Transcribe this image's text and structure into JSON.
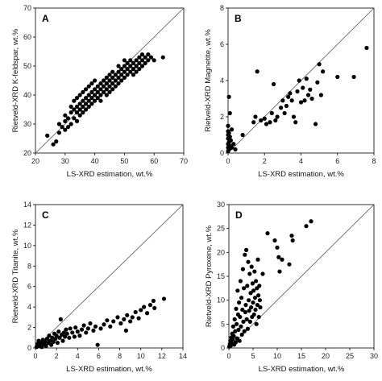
{
  "chart_data": [
    {
      "type": "scatter",
      "panel": "A",
      "xlabel": "LS-XRD estimation, wt.%",
      "ylabel": "Rietveld-XRD K-feldspar, wt.%",
      "xlim": [
        20,
        70
      ],
      "ylim": [
        20,
        70
      ],
      "xticks": [
        20,
        30,
        40,
        50,
        60,
        70
      ],
      "yticks": [
        20,
        30,
        40,
        50,
        60,
        70
      ],
      "reference_line": "1:1",
      "points": [
        [
          24,
          26
        ],
        [
          26,
          23
        ],
        [
          27,
          24
        ],
        [
          28,
          30
        ],
        [
          28,
          27
        ],
        [
          29,
          29
        ],
        [
          30,
          28
        ],
        [
          30,
          31
        ],
        [
          30,
          33
        ],
        [
          31,
          29
        ],
        [
          31,
          32
        ],
        [
          32,
          30
        ],
        [
          32,
          34
        ],
        [
          32,
          36
        ],
        [
          33,
          32
        ],
        [
          33,
          35
        ],
        [
          33,
          38
        ],
        [
          34,
          31
        ],
        [
          34,
          34
        ],
        [
          34,
          36
        ],
        [
          34,
          39
        ],
        [
          35,
          33
        ],
        [
          35,
          35
        ],
        [
          35,
          37
        ],
        [
          35,
          40
        ],
        [
          36,
          34
        ],
        [
          36,
          36
        ],
        [
          36,
          38
        ],
        [
          36,
          41
        ],
        [
          37,
          35
        ],
        [
          37,
          37
        ],
        [
          37,
          39
        ],
        [
          37,
          42
        ],
        [
          38,
          36
        ],
        [
          38,
          38
        ],
        [
          38,
          40
        ],
        [
          38,
          43
        ],
        [
          39,
          37
        ],
        [
          39,
          39
        ],
        [
          39,
          41
        ],
        [
          39,
          44
        ],
        [
          40,
          38
        ],
        [
          40,
          40
        ],
        [
          40,
          42
        ],
        [
          40,
          45
        ],
        [
          41,
          39
        ],
        [
          41,
          41
        ],
        [
          41,
          43
        ],
        [
          42,
          38
        ],
        [
          42,
          40
        ],
        [
          42,
          42
        ],
        [
          42,
          44
        ],
        [
          43,
          41
        ],
        [
          43,
          43
        ],
        [
          43,
          45
        ],
        [
          44,
          40
        ],
        [
          44,
          42
        ],
        [
          44,
          44
        ],
        [
          44,
          46
        ],
        [
          45,
          41
        ],
        [
          45,
          43
        ],
        [
          45,
          45
        ],
        [
          45,
          47
        ],
        [
          46,
          42
        ],
        [
          46,
          44
        ],
        [
          46,
          46
        ],
        [
          46,
          48
        ],
        [
          47,
          43
        ],
        [
          47,
          45
        ],
        [
          47,
          47
        ],
        [
          48,
          44
        ],
        [
          48,
          46
        ],
        [
          48,
          48
        ],
        [
          48,
          50
        ],
        [
          49,
          45
        ],
        [
          49,
          47
        ],
        [
          49,
          49
        ],
        [
          50,
          46
        ],
        [
          50,
          48
        ],
        [
          50,
          50
        ],
        [
          50,
          52
        ],
        [
          51,
          47
        ],
        [
          51,
          49
        ],
        [
          51,
          51
        ],
        [
          52,
          48
        ],
        [
          52,
          50
        ],
        [
          52,
          52
        ],
        [
          53,
          47
        ],
        [
          53,
          49
        ],
        [
          53,
          51
        ],
        [
          54,
          48
        ],
        [
          54,
          50
        ],
        [
          54,
          52
        ],
        [
          55,
          49
        ],
        [
          55,
          51
        ],
        [
          55,
          53
        ],
        [
          56,
          50
        ],
        [
          56,
          52
        ],
        [
          56,
          54
        ],
        [
          57,
          51
        ],
        [
          57,
          53
        ],
        [
          58,
          52
        ],
        [
          58,
          54
        ],
        [
          59,
          53
        ],
        [
          60,
          52
        ],
        [
          63,
          53
        ]
      ]
    },
    {
      "type": "scatter",
      "panel": "B",
      "xlabel": "LS-XRD estimation, wt.%",
      "ylabel": "Rietveld-XRD Magnetite, wt.%",
      "xlim": [
        0,
        8
      ],
      "ylim": [
        0,
        8
      ],
      "xticks": [
        0,
        2,
        4,
        6,
        8
      ],
      "yticks": [
        0,
        2,
        4,
        6,
        8
      ],
      "reference_line": "1:1",
      "points": [
        [
          0,
          0.1
        ],
        [
          0,
          0.3
        ],
        [
          0,
          0.5
        ],
        [
          0,
          0.8
        ],
        [
          0,
          1.0
        ],
        [
          0,
          1.2
        ],
        [
          0,
          1.5
        ],
        [
          0.05,
          0.2
        ],
        [
          0.05,
          0.6
        ],
        [
          0.05,
          1.1
        ],
        [
          0.05,
          3.1
        ],
        [
          0.1,
          0.4
        ],
        [
          0.1,
          0.9
        ],
        [
          0.1,
          2.2
        ],
        [
          0.15,
          0.7
        ],
        [
          0.2,
          0.3
        ],
        [
          0.2,
          1.3
        ],
        [
          0.3,
          0.5
        ],
        [
          0.4,
          0.2
        ],
        [
          0.8,
          1.0
        ],
        [
          1.4,
          1.7
        ],
        [
          1.5,
          2.0
        ],
        [
          1.6,
          4.5
        ],
        [
          1.8,
          1.8
        ],
        [
          2.0,
          1.9
        ],
        [
          2.1,
          1.6
        ],
        [
          2.3,
          1.7
        ],
        [
          2.4,
          2.2
        ],
        [
          2.5,
          3.8
        ],
        [
          2.6,
          1.8
        ],
        [
          2.7,
          2.0
        ],
        [
          2.9,
          2.5
        ],
        [
          3.0,
          2.9
        ],
        [
          3.1,
          2.2
        ],
        [
          3.2,
          2.6
        ],
        [
          3.3,
          3.1
        ],
        [
          3.4,
          3.3
        ],
        [
          3.5,
          2.9
        ],
        [
          3.6,
          2.0
        ],
        [
          3.7,
          1.7
        ],
        [
          3.8,
          3.4
        ],
        [
          3.9,
          4.0
        ],
        [
          4.0,
          2.8
        ],
        [
          4.1,
          3.6
        ],
        [
          4.2,
          2.9
        ],
        [
          4.3,
          4.1
        ],
        [
          4.4,
          3.2
        ],
        [
          4.5,
          3.5
        ],
        [
          4.6,
          3.0
        ],
        [
          4.8,
          1.6
        ],
        [
          4.9,
          3.9
        ],
        [
          5.0,
          4.9
        ],
        [
          5.1,
          3.2
        ],
        [
          5.2,
          4.5
        ],
        [
          6.0,
          4.2
        ],
        [
          6.9,
          4.2
        ],
        [
          7.6,
          5.8
        ]
      ]
    },
    {
      "type": "scatter",
      "panel": "C",
      "xlabel": "LS-XRD estimation, wt.%",
      "ylabel": "Rietveld-XRD Titanite, wt.%",
      "xlim": [
        0,
        14
      ],
      "ylim": [
        0,
        14
      ],
      "xticks": [
        0,
        2,
        4,
        6,
        8,
        10,
        12,
        14
      ],
      "yticks": [
        0,
        2,
        4,
        6,
        8,
        10,
        12,
        14
      ],
      "reference_line": "1:1",
      "points": [
        [
          0.1,
          0.1
        ],
        [
          0.2,
          0.4
        ],
        [
          0.3,
          0.2
        ],
        [
          0.3,
          0.7
        ],
        [
          0.4,
          0.3
        ],
        [
          0.5,
          0.5
        ],
        [
          0.6,
          0.1
        ],
        [
          0.7,
          0.8
        ],
        [
          0.8,
          0.4
        ],
        [
          0.9,
          0.6
        ],
        [
          1.0,
          0.2
        ],
        [
          1.1,
          0.9
        ],
        [
          1.2,
          0.5
        ],
        [
          1.3,
          1.2
        ],
        [
          1.4,
          0.7
        ],
        [
          1.5,
          0.3
        ],
        [
          1.6,
          1.0
        ],
        [
          1.7,
          0.6
        ],
        [
          1.8,
          1.4
        ],
        [
          1.9,
          0.9
        ],
        [
          2.0,
          1.2
        ],
        [
          2.1,
          0.5
        ],
        [
          2.2,
          1.6
        ],
        [
          2.3,
          1.0
        ],
        [
          2.4,
          2.8
        ],
        [
          2.5,
          1.3
        ],
        [
          2.6,
          0.7
        ],
        [
          2.7,
          1.5
        ],
        [
          2.8,
          1.1
        ],
        [
          2.9,
          1.8
        ],
        [
          3.0,
          1.4
        ],
        [
          3.2,
          1.0
        ],
        [
          3.3,
          1.9
        ],
        [
          3.5,
          1.5
        ],
        [
          3.7,
          1.1
        ],
        [
          3.8,
          2.0
        ],
        [
          4.0,
          1.6
        ],
        [
          4.2,
          1.2
        ],
        [
          4.4,
          1.8
        ],
        [
          4.6,
          2.2
        ],
        [
          4.8,
          1.5
        ],
        [
          5.0,
          1.9
        ],
        [
          5.2,
          2.4
        ],
        [
          5.5,
          1.7
        ],
        [
          5.7,
          2.1
        ],
        [
          5.9,
          0.3
        ],
        [
          6.2,
          1.9
        ],
        [
          6.5,
          2.3
        ],
        [
          6.8,
          2.7
        ],
        [
          7.1,
          2.1
        ],
        [
          7.4,
          2.6
        ],
        [
          7.8,
          3.0
        ],
        [
          8.1,
          2.4
        ],
        [
          8.4,
          2.8
        ],
        [
          8.6,
          1.7
        ],
        [
          8.7,
          3.2
        ],
        [
          9.0,
          2.6
        ],
        [
          9.2,
          3.0
        ],
        [
          9.5,
          3.5
        ],
        [
          9.8,
          2.9
        ],
        [
          10.0,
          3.7
        ],
        [
          10.3,
          4.0
        ],
        [
          10.6,
          3.4
        ],
        [
          10.9,
          4.2
        ],
        [
          11.2,
          4.6
        ],
        [
          11.3,
          3.9
        ],
        [
          12.2,
          4.8
        ]
      ]
    },
    {
      "type": "scatter",
      "panel": "D",
      "xlabel": "LS-XRD estimation, wt.%",
      "ylabel": "Rietveld-XRD Pyroxene, wt.%",
      "xlim": [
        0,
        30
      ],
      "ylim": [
        0,
        30
      ],
      "xticks": [
        0,
        5,
        10,
        15,
        20,
        25,
        30
      ],
      "yticks": [
        0,
        5,
        10,
        15,
        20,
        25,
        30
      ],
      "reference_line": "1:1",
      "points": [
        [
          0.1,
          0.3
        ],
        [
          0.2,
          0.8
        ],
        [
          0.3,
          1.5
        ],
        [
          0.4,
          0.5
        ],
        [
          0.5,
          2.2
        ],
        [
          0.6,
          1.0
        ],
        [
          0.7,
          3.0
        ],
        [
          0.8,
          1.8
        ],
        [
          0.9,
          4.5
        ],
        [
          1.0,
          2.5
        ],
        [
          1.1,
          0.7
        ],
        [
          1.2,
          6.0
        ],
        [
          1.3,
          3.5
        ],
        [
          1.4,
          1.2
        ],
        [
          1.5,
          8.2
        ],
        [
          1.6,
          5.0
        ],
        [
          1.7,
          2.0
        ],
        [
          1.8,
          12.0
        ],
        [
          1.9,
          7.0
        ],
        [
          2.0,
          3.8
        ],
        [
          2.1,
          9.5
        ],
        [
          2.2,
          1.5
        ],
        [
          2.3,
          6.5
        ],
        [
          2.4,
          14.0
        ],
        [
          2.5,
          4.5
        ],
        [
          2.6,
          10.5
        ],
        [
          2.7,
          2.8
        ],
        [
          2.8,
          8.0
        ],
        [
          2.9,
          16.5
        ],
        [
          3.0,
          5.5
        ],
        [
          3.1,
          12.5
        ],
        [
          3.2,
          3.5
        ],
        [
          3.3,
          19.5
        ],
        [
          3.4,
          7.5
        ],
        [
          3.5,
          9.0
        ],
        [
          3.6,
          20.5
        ],
        [
          3.7,
          6.0
        ],
        [
          3.8,
          13.0
        ],
        [
          3.9,
          4.0
        ],
        [
          4.0,
          18.0
        ],
        [
          4.1,
          10.0
        ],
        [
          4.2,
          7.8
        ],
        [
          4.3,
          15.5
        ],
        [
          4.4,
          5.5
        ],
        [
          4.5,
          11.5
        ],
        [
          4.6,
          8.5
        ],
        [
          4.7,
          17.0
        ],
        [
          4.8,
          6.5
        ],
        [
          4.9,
          13.5
        ],
        [
          5.0,
          9.5
        ],
        [
          5.1,
          12.0
        ],
        [
          5.2,
          7.0
        ],
        [
          5.3,
          16.0
        ],
        [
          5.4,
          10.5
        ],
        [
          5.5,
          8.0
        ],
        [
          5.6,
          14.0
        ],
        [
          5.7,
          5.0
        ],
        [
          5.8,
          12.5
        ],
        [
          5.9,
          9.0
        ],
        [
          6.0,
          18.5
        ],
        [
          6.1,
          11.0
        ],
        [
          6.2,
          6.5
        ],
        [
          6.3,
          13.0
        ],
        [
          6.4,
          10.0
        ],
        [
          6.5,
          8.5
        ],
        [
          7.0,
          15.5
        ],
        [
          8.0,
          24.0
        ],
        [
          9.5,
          22.5
        ],
        [
          10.0,
          21.0
        ],
        [
          10.3,
          19.0
        ],
        [
          10.5,
          16.0
        ],
        [
          11.0,
          18.5
        ],
        [
          12.5,
          17.5
        ],
        [
          13.0,
          23.5
        ],
        [
          13.2,
          22.5
        ],
        [
          16.0,
          25.5
        ],
        [
          17.0,
          26.5
        ]
      ]
    }
  ]
}
